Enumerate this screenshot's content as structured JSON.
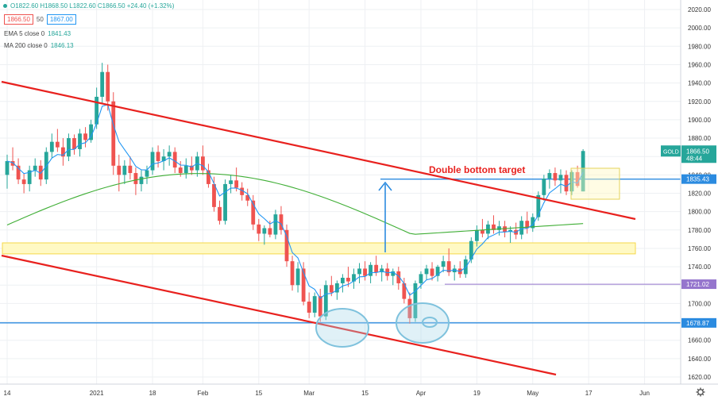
{
  "header": {
    "ohlc": "O1822.60 H1868.50 L1822.60 C1866.50 +24.40 (+1.32%)",
    "sell": "1866.50",
    "spread": "50",
    "buy": "1867.00"
  },
  "indicators": [
    {
      "label": "EMA 5 close 0",
      "value": "1841.43"
    },
    {
      "label": "MA 200 close 0",
      "value": "1846.13"
    }
  ],
  "annotation": "Double bottom target",
  "symbol_tag": {
    "name": "GOLD",
    "price": "1866.50",
    "countdown": "48:44"
  },
  "level_tags": [
    "1835.43",
    "1721.02",
    "1678.87"
  ],
  "colors": {
    "up": "#26a69a",
    "down": "#ef5350",
    "channel": "#e8211e",
    "ema": "#2196f3",
    "ma": "#3fae35",
    "level": "#2b8be0",
    "purple": "#9575cd",
    "zone_fill": "#fff9c4",
    "zone_stroke": "#f5d84a"
  },
  "chart_data": {
    "type": "candlestick",
    "instrument": "GOLD",
    "ylim": [
      1615,
      2025
    ],
    "y_ticks": [
      1620,
      1640,
      1660,
      1680,
      1700,
      1720,
      1740,
      1760,
      1780,
      1800,
      1820,
      1840,
      1860,
      1880,
      1900,
      1920,
      1940,
      1960,
      1980,
      2000,
      2020
    ],
    "x_ticks": [
      "14",
      "2021",
      "18",
      "Feb",
      "15",
      "Mar",
      "15",
      "Apr",
      "19",
      "May",
      "17",
      "Jun"
    ],
    "tick_index": [
      0,
      16,
      26,
      35,
      45,
      54,
      64,
      74,
      84,
      94,
      104,
      114
    ],
    "candles": [
      [
        1840,
        1862,
        1825,
        1855
      ],
      [
        1855,
        1870,
        1845,
        1850
      ],
      [
        1850,
        1858,
        1830,
        1835
      ],
      [
        1835,
        1842,
        1820,
        1830
      ],
      [
        1830,
        1850,
        1822,
        1845
      ],
      [
        1845,
        1858,
        1838,
        1850
      ],
      [
        1850,
        1856,
        1828,
        1835
      ],
      [
        1835,
        1870,
        1830,
        1865
      ],
      [
        1865,
        1885,
        1858,
        1876
      ],
      [
        1876,
        1890,
        1865,
        1870
      ],
      [
        1870,
        1880,
        1850,
        1860
      ],
      [
        1860,
        1885,
        1855,
        1880
      ],
      [
        1880,
        1884,
        1862,
        1868
      ],
      [
        1868,
        1890,
        1860,
        1885
      ],
      [
        1885,
        1892,
        1870,
        1878
      ],
      [
        1878,
        1900,
        1875,
        1895
      ],
      [
        1895,
        1935,
        1890,
        1925
      ],
      [
        1925,
        1962,
        1918,
        1952
      ],
      [
        1952,
        1960,
        1910,
        1920
      ],
      [
        1920,
        1930,
        1840,
        1850
      ],
      [
        1850,
        1862,
        1822,
        1840
      ],
      [
        1840,
        1856,
        1830,
        1850
      ],
      [
        1850,
        1860,
        1835,
        1842
      ],
      [
        1842,
        1848,
        1818,
        1830
      ],
      [
        1830,
        1845,
        1822,
        1838
      ],
      [
        1838,
        1850,
        1830,
        1845
      ],
      [
        1845,
        1870,
        1840,
        1865
      ],
      [
        1865,
        1872,
        1848,
        1855
      ],
      [
        1855,
        1868,
        1845,
        1860
      ],
      [
        1860,
        1872,
        1850,
        1865
      ],
      [
        1865,
        1870,
        1842,
        1848
      ],
      [
        1848,
        1855,
        1838,
        1842
      ],
      [
        1842,
        1858,
        1836,
        1850
      ],
      [
        1850,
        1860,
        1840,
        1845
      ],
      [
        1845,
        1865,
        1838,
        1860
      ],
      [
        1860,
        1872,
        1840,
        1845
      ],
      [
        1845,
        1852,
        1826,
        1830
      ],
      [
        1830,
        1838,
        1800,
        1805
      ],
      [
        1805,
        1812,
        1786,
        1790
      ],
      [
        1790,
        1835,
        1786,
        1830
      ],
      [
        1830,
        1840,
        1820,
        1834
      ],
      [
        1834,
        1848,
        1822,
        1826
      ],
      [
        1826,
        1832,
        1812,
        1818
      ],
      [
        1818,
        1825,
        1806,
        1812
      ],
      [
        1812,
        1818,
        1780,
        1786
      ],
      [
        1786,
        1792,
        1768,
        1776
      ],
      [
        1776,
        1785,
        1764,
        1782
      ],
      [
        1782,
        1790,
        1772,
        1775
      ],
      [
        1775,
        1802,
        1770,
        1797
      ],
      [
        1797,
        1806,
        1775,
        1780
      ],
      [
        1780,
        1786,
        1740,
        1746
      ],
      [
        1746,
        1752,
        1714,
        1720
      ],
      [
        1720,
        1745,
        1712,
        1738
      ],
      [
        1738,
        1745,
        1698,
        1702
      ],
      [
        1702,
        1712,
        1684,
        1690
      ],
      [
        1690,
        1712,
        1685,
        1708
      ],
      [
        1708,
        1716,
        1680,
        1686
      ],
      [
        1686,
        1725,
        1682,
        1720
      ],
      [
        1720,
        1730,
        1708,
        1712
      ],
      [
        1712,
        1725,
        1704,
        1722
      ],
      [
        1722,
        1732,
        1712,
        1728
      ],
      [
        1728,
        1740,
        1718,
        1724
      ],
      [
        1724,
        1738,
        1716,
        1732
      ],
      [
        1732,
        1744,
        1722,
        1738
      ],
      [
        1738,
        1746,
        1725,
        1730
      ],
      [
        1730,
        1745,
        1722,
        1742
      ],
      [
        1742,
        1752,
        1730,
        1734
      ],
      [
        1734,
        1742,
        1724,
        1738
      ],
      [
        1738,
        1744,
        1725,
        1730
      ],
      [
        1730,
        1738,
        1720,
        1735
      ],
      [
        1735,
        1740,
        1715,
        1722
      ],
      [
        1722,
        1728,
        1700,
        1705
      ],
      [
        1705,
        1712,
        1678,
        1684
      ],
      [
        1684,
        1725,
        1680,
        1722
      ],
      [
        1722,
        1735,
        1716,
        1732
      ],
      [
        1732,
        1742,
        1726,
        1738
      ],
      [
        1738,
        1745,
        1725,
        1730
      ],
      [
        1730,
        1742,
        1724,
        1740
      ],
      [
        1740,
        1752,
        1734,
        1746
      ],
      [
        1746,
        1760,
        1730,
        1734
      ],
      [
        1734,
        1742,
        1725,
        1738
      ],
      [
        1738,
        1746,
        1728,
        1732
      ],
      [
        1732,
        1752,
        1728,
        1748
      ],
      [
        1748,
        1772,
        1744,
        1768
      ],
      [
        1768,
        1785,
        1762,
        1780
      ],
      [
        1780,
        1792,
        1772,
        1776
      ],
      [
        1776,
        1790,
        1770,
        1786
      ],
      [
        1786,
        1796,
        1776,
        1780
      ],
      [
        1780,
        1790,
        1774,
        1784
      ],
      [
        1784,
        1790,
        1772,
        1778
      ],
      [
        1778,
        1784,
        1766,
        1780
      ],
      [
        1780,
        1788,
        1770,
        1775
      ],
      [
        1775,
        1795,
        1770,
        1790
      ],
      [
        1790,
        1800,
        1776,
        1782
      ],
      [
        1782,
        1798,
        1778,
        1794
      ],
      [
        1794,
        1822,
        1790,
        1818
      ],
      [
        1818,
        1840,
        1812,
        1836
      ],
      [
        1836,
        1846,
        1825,
        1842
      ],
      [
        1842,
        1848,
        1828,
        1834
      ],
      [
        1834,
        1846,
        1820,
        1840
      ],
      [
        1840,
        1845,
        1818,
        1822
      ],
      [
        1822,
        1845,
        1818,
        1843
      ],
      [
        1843,
        1850,
        1826,
        1828
      ],
      [
        1822,
        1868,
        1822,
        1866
      ]
    ],
    "series": [
      {
        "name": "EMA 5 close 0"
      },
      {
        "name": "MA 200 close 0"
      }
    ],
    "levels": [
      1835.43,
      1721.02,
      1678.87
    ],
    "zone": [
      1754,
      1766
    ]
  }
}
